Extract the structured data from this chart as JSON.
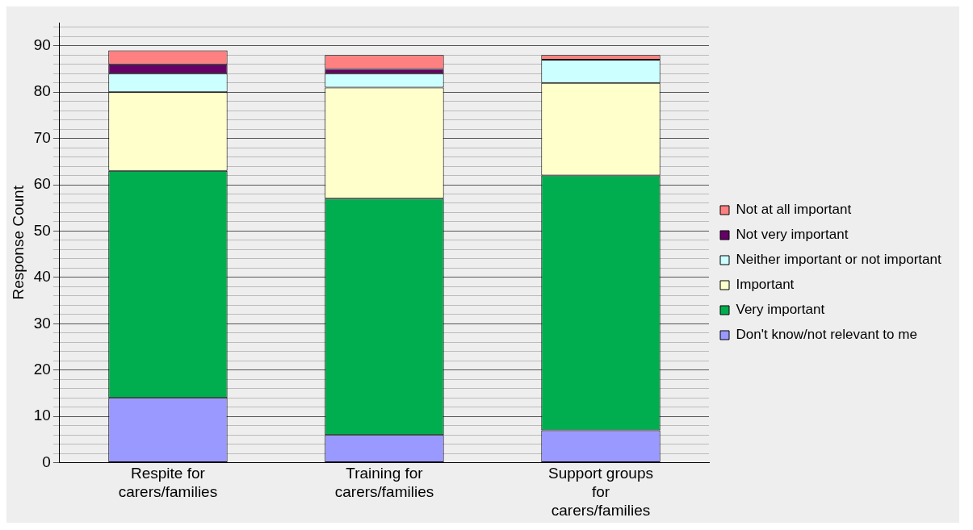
{
  "chart_data": {
    "type": "bar",
    "stacked": true,
    "ylabel": "Response Count",
    "categories": [
      "Respite for carers/families",
      "Training for carers/families",
      "Support groups for carers/families"
    ],
    "series": [
      {
        "name": "Don't know/not relevant to me",
        "color": "#9999ff",
        "values": [
          14,
          6,
          7
        ]
      },
      {
        "name": "Very important",
        "color": "#00ae4f",
        "values": [
          49,
          51,
          55
        ]
      },
      {
        "name": "Important",
        "color": "#ffffcc",
        "values": [
          17,
          24,
          20
        ]
      },
      {
        "name": "Neither important or not important",
        "color": "#ccffff",
        "values": [
          4,
          3,
          5
        ]
      },
      {
        "name": "Not very important",
        "color": "#660066",
        "values": [
          2,
          1,
          0
        ]
      },
      {
        "name": "Not at all important",
        "color": "#ff8080",
        "values": [
          3,
          3,
          1
        ]
      }
    ],
    "ylim": [
      0,
      95
    ],
    "yticks": [
      0,
      {
        "value": 2,
        "label": null
      },
      {
        "value": 4,
        "label": null
      },
      {
        "value": 6,
        "label": null
      },
      {
        "value": 8,
        "label": null
      },
      10,
      {
        "value": 12,
        "label": null
      },
      {
        "value": 14,
        "label": null
      },
      {
        "value": 16,
        "label": null
      },
      {
        "value": 18,
        "label": null
      },
      20,
      {
        "value": 22,
        "label": null
      },
      {
        "value": 24,
        "label": null
      },
      {
        "value": 26,
        "label": null
      },
      {
        "value": 28,
        "label": null
      },
      30,
      {
        "value": 32,
        "label": null
      },
      {
        "value": 34,
        "label": null
      },
      {
        "value": 36,
        "label": null
      },
      {
        "value": 38,
        "label": null
      },
      40,
      {
        "value": 42,
        "label": null
      },
      {
        "value": 44,
        "label": null
      },
      {
        "value": 46,
        "label": null
      },
      {
        "value": 48,
        "label": null
      },
      50,
      {
        "value": 52,
        "label": null
      },
      {
        "value": 54,
        "label": null
      },
      {
        "value": 56,
        "label": null
      },
      {
        "value": 58,
        "label": null
      },
      60,
      {
        "value": 62,
        "label": null
      },
      {
        "value": 64,
        "label": null
      },
      {
        "value": 66,
        "label": null
      },
      {
        "value": 68,
        "label": null
      },
      70,
      {
        "value": 72,
        "label": null
      },
      {
        "value": 74,
        "label": null
      },
      {
        "value": 76,
        "label": null
      },
      {
        "value": 78,
        "label": null
      },
      80,
      {
        "value": 82,
        "label": null
      },
      {
        "value": 84,
        "label": null
      },
      {
        "value": 86,
        "label": null
      },
      {
        "value": 88,
        "label": null
      },
      90,
      {
        "value": 92,
        "label": null
      },
      {
        "value": 94,
        "label": null
      }
    ],
    "grid": "y",
    "legend": "right"
  }
}
